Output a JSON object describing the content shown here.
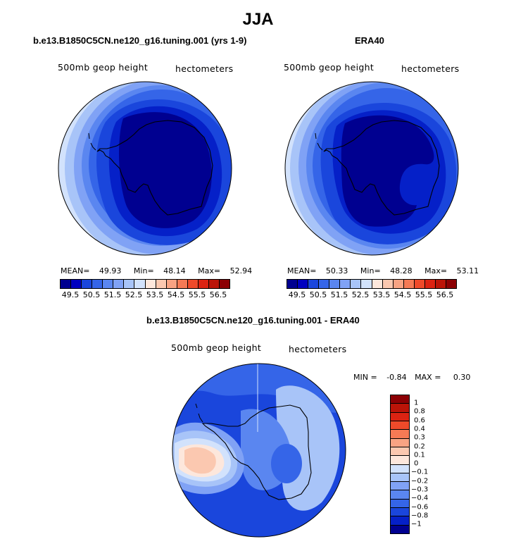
{
  "main_title": "JJA",
  "colors": {
    "neg": [
      "#000090",
      "#0000c0",
      "#0520c8",
      "#1a46dc",
      "#3565e8",
      "#5a86f0",
      "#80a2f5",
      "#a8c4f8",
      "#d2e2fc"
    ],
    "zero": "#ffffff",
    "pos": [
      "#fde7dc",
      "#fbc8b0",
      "#f8a383",
      "#f57a55",
      "#ef4a2a",
      "#dc2312",
      "#bb1408",
      "#8c0004"
    ],
    "outline": "#000000"
  },
  "panels": {
    "model": {
      "title": "b.e13.B1850C5CN.ne120_g16.tuning.001 (yrs 1-9)",
      "left_label": "500mb geop height",
      "right_label": "hectometers",
      "mean_label": "MEAN=",
      "mean": "49.93",
      "min_label": "Min=",
      "min": "48.14",
      "max_label": "Max=",
      "max": "52.94"
    },
    "obs": {
      "title": "ERA40",
      "left_label": "500mb geop height",
      "right_label": "hectometers",
      "mean_label": "MEAN=",
      "mean": "50.33",
      "min_label": "Min=",
      "min": "48.28",
      "max_label": "Max=",
      "max": "53.11"
    },
    "diff": {
      "title": "b.e13.B1850C5CN.ne120_g16.tuning.001 - ERA40",
      "left_label": "500mb geop height",
      "right_label": "hectometers",
      "min_label": "MIN =",
      "min": "-0.84",
      "max_label": "MAX =",
      "max": "0.30"
    }
  },
  "colorbar_levels": [
    "49.5",
    "50.5",
    "51.5",
    "52.5",
    "53.5",
    "54.5",
    "55.5",
    "56.5"
  ],
  "diff_levels": [
    "1",
    "0.8",
    "0.6",
    "0.4",
    "0.3",
    "0.2",
    "0.1",
    "0",
    "−0.1",
    "−0.2",
    "−0.3",
    "−0.4",
    "−0.6",
    "−0.8",
    "−1"
  ]
}
